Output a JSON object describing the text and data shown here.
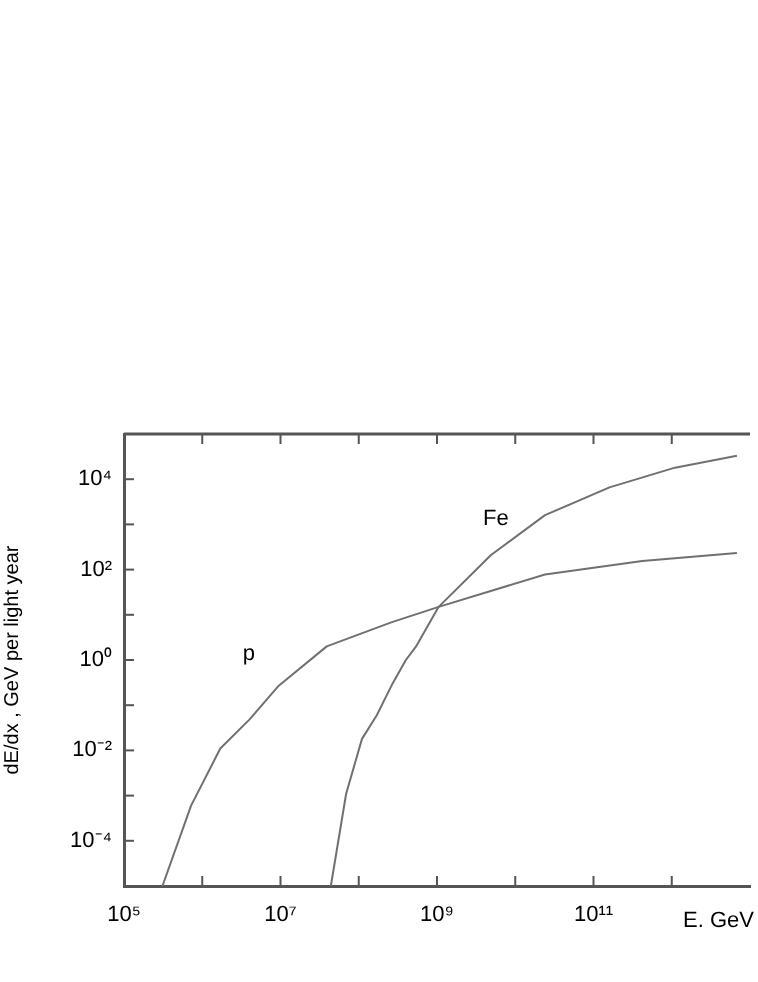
{
  "chart_data": {
    "type": "line",
    "xlabel": "E. GeV",
    "ylabel": "dE/dx , GeV per light year",
    "log": "xy",
    "xlim": [
      100000,
      10000000000000
    ],
    "xticks": [
      {
        "value": 100000,
        "label": "10⁵"
      },
      {
        "value": 1000000,
        "label": null
      },
      {
        "value": 10000000,
        "label": "10⁷"
      },
      {
        "value": 100000000,
        "label": null
      },
      {
        "value": 1000000000,
        "label": "10⁹"
      },
      {
        "value": 10000000000,
        "label": null
      },
      {
        "value": 100000000000,
        "label": "10¹¹"
      },
      {
        "value": 1000000000000,
        "label": null
      }
    ],
    "ylim": [
      1e-05,
      100000
    ],
    "yticks": [
      {
        "value": 0.0001,
        "label": "10⁻⁴"
      },
      {
        "value": 0.001,
        "label": null
      },
      {
        "value": 0.01,
        "label": "10⁻²"
      },
      {
        "value": 0.1,
        "label": null
      },
      {
        "value": 1,
        "label": "10⁰"
      },
      {
        "value": 10,
        "label": null
      },
      {
        "value": 100,
        "label": "10²"
      },
      {
        "value": 1000,
        "label": null
      },
      {
        "value": 10000,
        "label": "10⁴"
      }
    ],
    "series": [
      {
        "name": "p",
        "color": "#707070",
        "x": [
          310000,
          720000,
          1700000,
          4000000,
          9500000,
          39000000,
          260000000,
          1050000000,
          24000000000,
          420000000000,
          6800000000000
        ],
        "values": [
          1e-05,
          0.0006,
          0.011,
          0.048,
          0.27,
          2.0,
          6.8,
          15,
          78,
          155,
          234
        ]
      },
      {
        "name": "Fe",
        "color": "#707070",
        "x": [
          44000000,
          69000000,
          110000000,
          170000000,
          270000000,
          400000000,
          540000000,
          1050000000,
          4900000000,
          24000000000,
          160000000000,
          1100000000000,
          6800000000000
        ],
        "values": [
          1e-05,
          0.0011,
          0.018,
          0.06,
          0.3,
          1.0,
          2.0,
          15,
          210,
          1600,
          6600,
          18000,
          33000
        ]
      }
    ],
    "marker": "none",
    "line_style": "solid",
    "legend": false,
    "grid": false
  }
}
